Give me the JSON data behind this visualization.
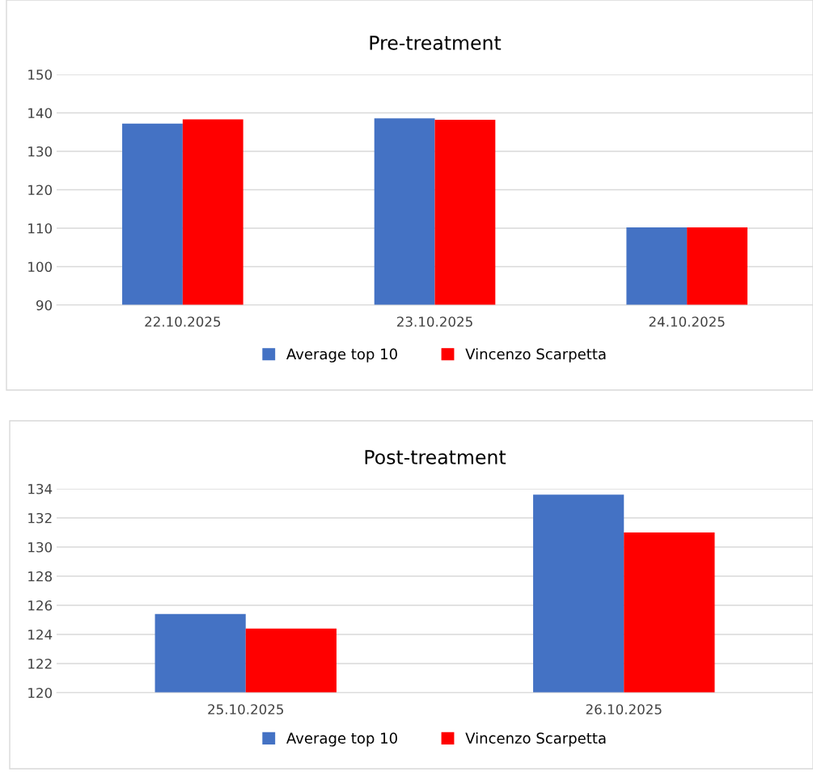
{
  "chart_data": [
    {
      "type": "bar",
      "title": "Pre-treatment",
      "categories": [
        "22.10.2025",
        "23.10.2025",
        "24.10.2025"
      ],
      "series": [
        {
          "name": "Average top 10",
          "color": "#4472c4",
          "values": [
            137.2,
            138.6,
            110.2
          ]
        },
        {
          "name": "Vincenzo Scarpetta",
          "color": "#ff0000",
          "values": [
            138.3,
            138.2,
            110.2
          ]
        }
      ],
      "ylim": [
        90,
        150
      ],
      "yticks": [
        90,
        100,
        110,
        120,
        130,
        140,
        150
      ],
      "grid": "y",
      "legend": "bottom"
    },
    {
      "type": "bar",
      "title": "Post-treatment",
      "categories": [
        "25.10.2025",
        "26.10.2025"
      ],
      "series": [
        {
          "name": "Average top 10",
          "color": "#4472c4",
          "values": [
            125.4,
            133.6
          ]
        },
        {
          "name": "Vincenzo Scarpetta",
          "color": "#ff0000",
          "values": [
            124.4,
            131.0
          ]
        }
      ],
      "ylim": [
        120,
        134
      ],
      "yticks": [
        120,
        122,
        124,
        126,
        128,
        130,
        132,
        134
      ],
      "grid": "y",
      "legend": "bottom"
    }
  ]
}
